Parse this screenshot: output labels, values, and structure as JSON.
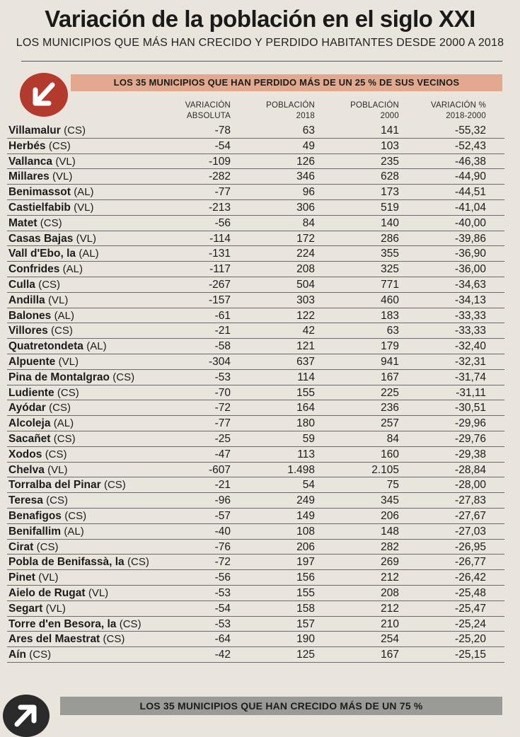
{
  "title": "Variación de la población en el siglo XXI",
  "subtitle": "LOS MUNICIPIOS QUE MÁS HAN CRECIDO Y PERDIDO HABITANTES DESDE 2000 A 2018",
  "banner_lost": "LOS 35 MUNICIPIOS QUE HAN PERDIDO MÁS DE UN 25 % DE SUS VECINOS",
  "banner_gained": "LOS 35 MUNICIPIOS QUE HAN CRECIDO MÁS DE UN 75 %",
  "colors": {
    "banner_lost": "#e2a98e",
    "icon_lost": "#b33a2c",
    "banner_gained": "#9a9a96",
    "icon_gained": "#2a2a2a"
  },
  "icons": {
    "lost": "arrow-down-left-icon",
    "gained": "arrow-up-right-icon"
  },
  "headers": {
    "abs_line1": "VARIACIÓN",
    "abs_line2": "ABSOLUTA",
    "p2018_line1": "POBLACIÓN",
    "p2018_line2": "2018",
    "p2000_line1": "POBLACIÓN",
    "p2000_line2": "2000",
    "pct_line1": "VARIACIÓN %",
    "pct_line2": "2018-2000"
  },
  "rows": [
    {
      "name": "Villamalur",
      "prov": "(CS)",
      "abs": "-78",
      "p2018": "63",
      "p2000": "141",
      "pct": "-55,32"
    },
    {
      "name": "Herbés",
      "prov": "(CS)",
      "abs": "-54",
      "p2018": "49",
      "p2000": "103",
      "pct": "-52,43"
    },
    {
      "name": "Vallanca",
      "prov": "(VL)",
      "abs": "-109",
      "p2018": "126",
      "p2000": "235",
      "pct": "-46,38"
    },
    {
      "name": "Millares",
      "prov": "(VL)",
      "abs": "-282",
      "p2018": "346",
      "p2000": "628",
      "pct": "-44,90"
    },
    {
      "name": "Benimassot",
      "prov": "(AL)",
      "abs": "-77",
      "p2018": "96",
      "p2000": "173",
      "pct": "-44,51"
    },
    {
      "name": "Castielfabib",
      "prov": "(VL)",
      "abs": "-213",
      "p2018": "306",
      "p2000": "519",
      "pct": "-41,04"
    },
    {
      "name": "Matet",
      "prov": "(CS)",
      "abs": "-56",
      "p2018": "84",
      "p2000": "140",
      "pct": "-40,00"
    },
    {
      "name": "Casas Bajas",
      "prov": "(VL)",
      "abs": "-114",
      "p2018": "172",
      "p2000": "286",
      "pct": "-39,86"
    },
    {
      "name": "Vall d'Ebo, la",
      "prov": "(AL)",
      "abs": "-131",
      "p2018": "224",
      "p2000": "355",
      "pct": "-36,90"
    },
    {
      "name": "Confrides",
      "prov": "(AL)",
      "abs": "-117",
      "p2018": "208",
      "p2000": "325",
      "pct": "-36,00"
    },
    {
      "name": "Culla",
      "prov": "(CS)",
      "abs": "-267",
      "p2018": "504",
      "p2000": "771",
      "pct": "-34,63"
    },
    {
      "name": "Andilla",
      "prov": "(VL)",
      "abs": "-157",
      "p2018": "303",
      "p2000": "460",
      "pct": "-34,13"
    },
    {
      "name": "Balones",
      "prov": "(AL)",
      "abs": "-61",
      "p2018": "122",
      "p2000": "183",
      "pct": "-33,33"
    },
    {
      "name": "Villores",
      "prov": "(CS)",
      "abs": "-21",
      "p2018": "42",
      "p2000": "63",
      "pct": "-33,33"
    },
    {
      "name": "Quatretondeta",
      "prov": "(AL)",
      "abs": "-58",
      "p2018": "121",
      "p2000": "179",
      "pct": "-32,40"
    },
    {
      "name": "Alpuente",
      "prov": "(VL)",
      "abs": "-304",
      "p2018": "637",
      "p2000": "941",
      "pct": "-32,31"
    },
    {
      "name": "Pina de Montalgrao",
      "prov": "(CS)",
      "abs": "-53",
      "p2018": "114",
      "p2000": "167",
      "pct": "-31,74"
    },
    {
      "name": "Ludiente",
      "prov": "(CS)",
      "abs": "-70",
      "p2018": "155",
      "p2000": "225",
      "pct": "-31,11"
    },
    {
      "name": "Ayódar",
      "prov": "(CS)",
      "abs": "-72",
      "p2018": "164",
      "p2000": "236",
      "pct": "-30,51"
    },
    {
      "name": "Alcoleja",
      "prov": "(AL)",
      "abs": "-77",
      "p2018": "180",
      "p2000": "257",
      "pct": "-29,96"
    },
    {
      "name": "Sacañet",
      "prov": "(CS)",
      "abs": "-25",
      "p2018": "59",
      "p2000": "84",
      "pct": "-29,76"
    },
    {
      "name": "Xodos",
      "prov": "(CS)",
      "abs": "-47",
      "p2018": "113",
      "p2000": "160",
      "pct": "-29,38"
    },
    {
      "name": "Chelva",
      "prov": "(VL)",
      "abs": "-607",
      "p2018": "1.498",
      "p2000": "2.105",
      "pct": "-28,84"
    },
    {
      "name": "Torralba del Pinar",
      "prov": "(CS)",
      "abs": "-21",
      "p2018": "54",
      "p2000": "75",
      "pct": "-28,00"
    },
    {
      "name": "Teresa",
      "prov": "(CS)",
      "abs": "-96",
      "p2018": "249",
      "p2000": "345",
      "pct": "-27,83"
    },
    {
      "name": "Benafigos",
      "prov": "(CS)",
      "abs": "-57",
      "p2018": "149",
      "p2000": "206",
      "pct": "-27,67"
    },
    {
      "name": "Benifallim",
      "prov": "(AL)",
      "abs": "-40",
      "p2018": "108",
      "p2000": "148",
      "pct": "-27,03"
    },
    {
      "name": "Cirat",
      "prov": "(CS)",
      "abs": "-76",
      "p2018": "206",
      "p2000": "282",
      "pct": "-26,95"
    },
    {
      "name": "Pobla de Benifassà, la",
      "prov": "(CS)",
      "abs": "-72",
      "p2018": "197",
      "p2000": "269",
      "pct": "-26,77"
    },
    {
      "name": "Pinet",
      "prov": "(VL)",
      "abs": "-56",
      "p2018": "156",
      "p2000": "212",
      "pct": "-26,42"
    },
    {
      "name": "Aielo de Rugat",
      "prov": "(VL)",
      "abs": "-53",
      "p2018": "155",
      "p2000": "208",
      "pct": "-25,48"
    },
    {
      "name": "Segart",
      "prov": "(VL)",
      "abs": "-54",
      "p2018": "158",
      "p2000": "212",
      "pct": "-25,47"
    },
    {
      "name": "Torre d'en Besora, la",
      "prov": "(CS)",
      "abs": "-53",
      "p2018": "157",
      "p2000": "210",
      "pct": "-25,24"
    },
    {
      "name": "Ares del Maestrat",
      "prov": "(CS)",
      "abs": "-64",
      "p2018": "190",
      "p2000": "254",
      "pct": "-25,20"
    },
    {
      "name": "Aín",
      "prov": "(CS)",
      "abs": "-42",
      "p2018": "125",
      "p2000": "167",
      "pct": "-25,15"
    }
  ]
}
